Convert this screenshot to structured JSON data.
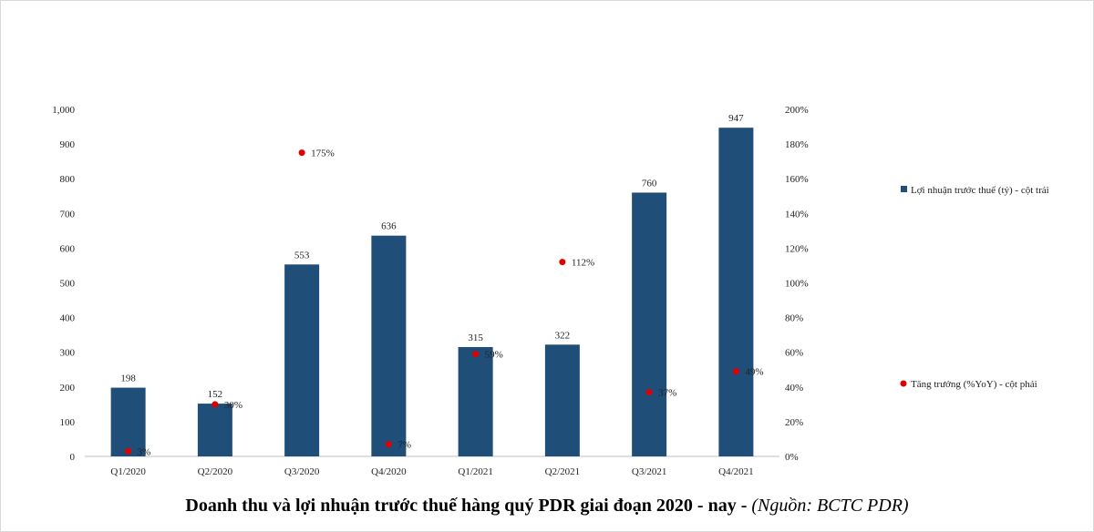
{
  "chart_data": {
    "type": "bar",
    "categories": [
      "Q1/2020",
      "Q2/2020",
      "Q3/2020",
      "Q4/2020",
      "Q1/2021",
      "Q2/2021",
      "Q3/2021",
      "Q4/2021"
    ],
    "series": [
      {
        "name": "Lợi nhuận trước thuế (tỷ) - cột trái",
        "type": "bar",
        "axis": "left",
        "color": "#1f4e79",
        "values": [
          198,
          152,
          553,
          636,
          315,
          322,
          760,
          947
        ],
        "labels": [
          "198",
          "152",
          "553",
          "636",
          "315",
          "322",
          "760",
          "947"
        ]
      },
      {
        "name": "Tăng trưởng (%YoY) - cột phải",
        "type": "scatter",
        "axis": "right",
        "color": "#e00000",
        "values": [
          3,
          30,
          175,
          7,
          59,
          112,
          37,
          49
        ],
        "labels": [
          "3%",
          "30%",
          "175%",
          "7%",
          "59%",
          "112%",
          "37%",
          "49%"
        ]
      }
    ],
    "y_left": {
      "ylim": [
        0,
        1000
      ],
      "ticks": [
        "0",
        "100",
        "200",
        "300",
        "400",
        "500",
        "600",
        "700",
        "800",
        "900",
        "1,000"
      ]
    },
    "y_right": {
      "ylim": [
        0,
        200
      ],
      "ticks": [
        "0%",
        "20%",
        "40%",
        "60%",
        "80%",
        "100%",
        "120%",
        "140%",
        "160%",
        "180%",
        "200%"
      ]
    },
    "grid": false,
    "legend_position": "right"
  },
  "caption": {
    "main": "Doanh thu và lợi nhuận trước thuế hàng quý PDR giai đoạn 2020 - nay - ",
    "source": "(Nguồn: BCTC PDR)"
  }
}
